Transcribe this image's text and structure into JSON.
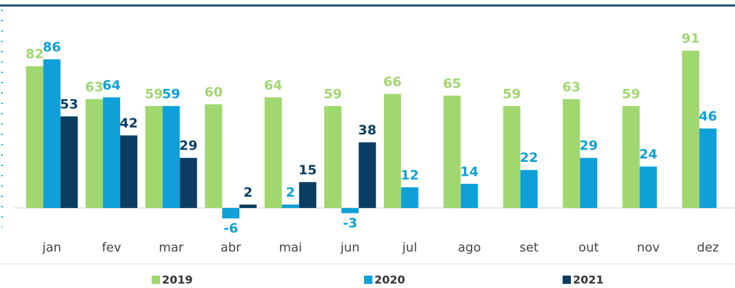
{
  "chart_data": {
    "type": "bar",
    "categories": [
      "jan",
      "fev",
      "mar",
      "abr",
      "mai",
      "jun",
      "jul",
      "ago",
      "set",
      "out",
      "nov",
      "dez"
    ],
    "series": [
      {
        "name": "2019",
        "color": "#a0d86f",
        "values": [
          82,
          63,
          59,
          60,
          64,
          59,
          66,
          65,
          59,
          63,
          59,
          91
        ]
      },
      {
        "name": "2020",
        "color": "#0fa0d8",
        "values": [
          86,
          64,
          59,
          -6,
          2,
          -3,
          12,
          14,
          22,
          29,
          24,
          46
        ]
      },
      {
        "name": "2021",
        "color": "#0b3d63",
        "values": [
          53,
          42,
          29,
          2,
          15,
          38,
          null,
          null,
          null,
          null,
          null,
          null
        ]
      }
    ],
    "ylim": [
      -10,
      100
    ],
    "legend": "bottom"
  }
}
